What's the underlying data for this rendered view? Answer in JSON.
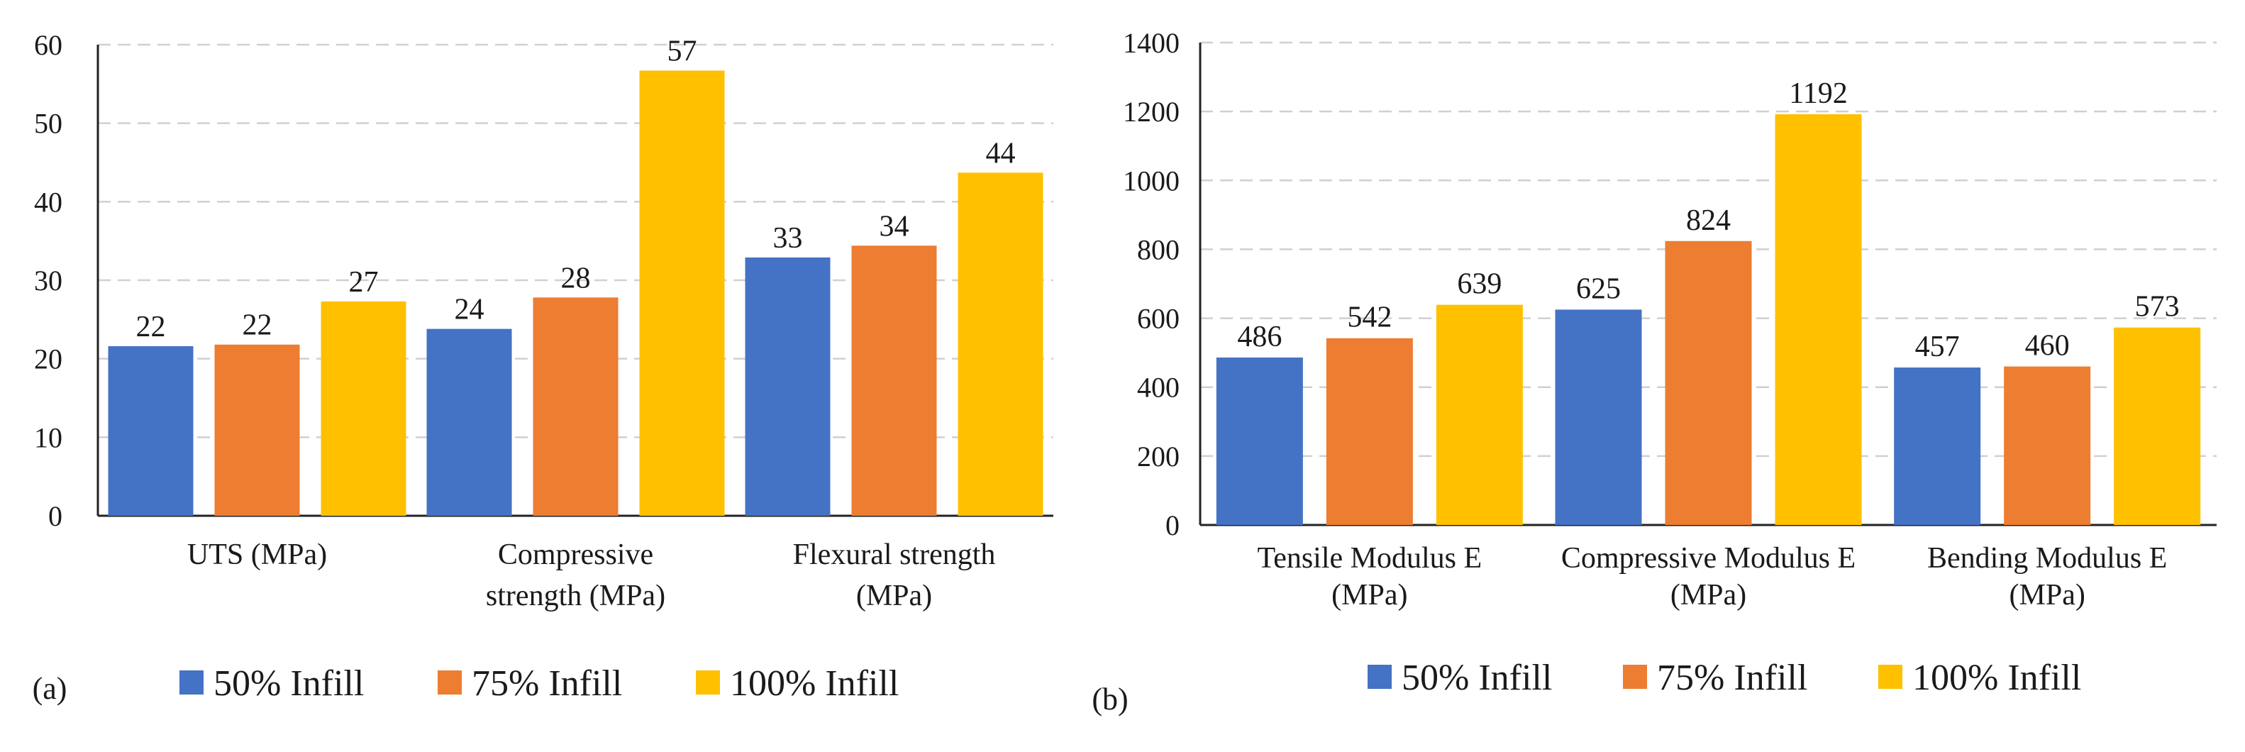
{
  "legend": [
    {
      "label": "50% Infill",
      "color": "#4472C4"
    },
    {
      "label": "75% Infill",
      "color": "#ED7D31"
    },
    {
      "label": "100% Infill",
      "color": "#FFC000"
    }
  ],
  "chart_data": [
    {
      "type": "bar",
      "panel_label": "(a)",
      "categories": [
        [
          "UTS (MPa)"
        ],
        [
          "Compressive",
          "strength (MPa)"
        ],
        [
          "Flexural strength",
          "(MPa)"
        ]
      ],
      "series": [
        {
          "name": "50% Infill",
          "values": [
            21.6,
            23.8,
            32.9
          ],
          "labels": [
            "22",
            "24",
            "33"
          ]
        },
        {
          "name": "75% Infill",
          "values": [
            21.8,
            27.8,
            34.4
          ],
          "labels": [
            "22",
            "28",
            "34"
          ]
        },
        {
          "name": "100% Infill",
          "values": [
            27.3,
            56.7,
            43.7
          ],
          "labels": [
            "27",
            "57",
            "44"
          ]
        }
      ],
      "ylim": [
        0,
        60
      ],
      "yticks": [
        "0",
        "10",
        "20",
        "30",
        "40",
        "50",
        "60"
      ],
      "grid": true,
      "legend_position": "bottom"
    },
    {
      "type": "bar",
      "panel_label": "(b)",
      "categories": [
        [
          "Tensile Modulus E",
          "(MPa)"
        ],
        [
          "Compressive Modulus E",
          "(MPa)"
        ],
        [
          "Bending Modulus E",
          "(MPa)"
        ]
      ],
      "series": [
        {
          "name": "50% Infill",
          "values": [
            486,
            625,
            457
          ],
          "labels": [
            "486",
            "625",
            "457"
          ]
        },
        {
          "name": "75% Infill",
          "values": [
            542,
            824,
            460
          ],
          "labels": [
            "542",
            "824",
            "460"
          ]
        },
        {
          "name": "100% Infill",
          "values": [
            639,
            1192,
            573
          ],
          "labels": [
            "639",
            "1192",
            "573"
          ]
        }
      ],
      "ylim": [
        0,
        1400
      ],
      "yticks": [
        "0",
        "200",
        "400",
        "600",
        "800",
        "1000",
        "1200",
        "1400"
      ],
      "grid": true,
      "legend_position": "bottom"
    }
  ]
}
